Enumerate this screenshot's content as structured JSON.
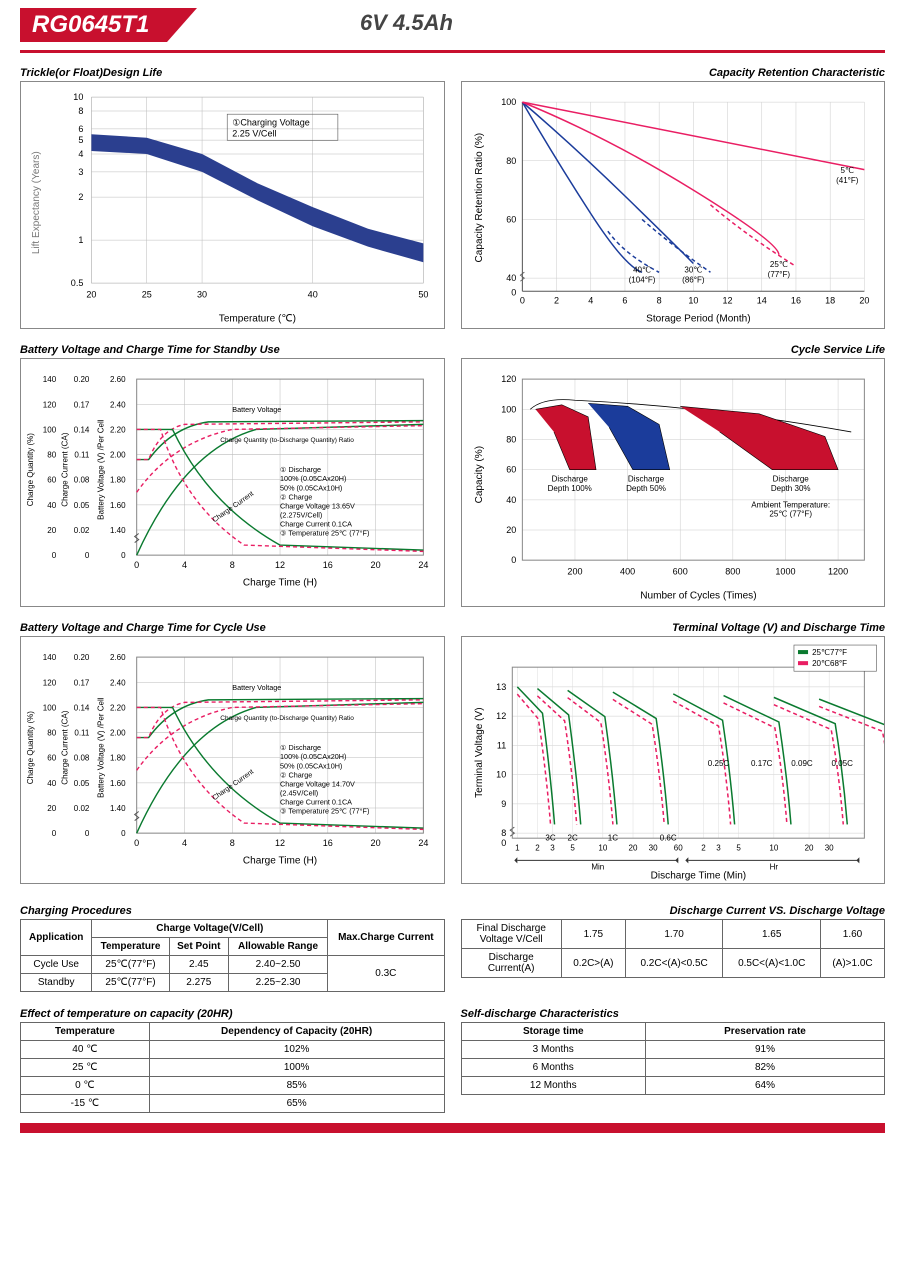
{
  "header": {
    "model": "RG0645T1",
    "spec": "6V  4.5Ah"
  },
  "chart1": {
    "title": "Trickle(or Float)Design Life",
    "ylabel": "Lift  Expectancy (Years)",
    "xlabel": "Temperature (℃)",
    "yticks": [
      "0.5",
      "1",
      "2",
      "3",
      "4",
      "5",
      "6",
      "8",
      "10"
    ],
    "xticks": [
      "20",
      "25",
      "30",
      "40",
      "50"
    ],
    "note1": "①Charging Voltage",
    "note2": "2.25 V/Cell",
    "band_color": "#2b3f8f"
  },
  "chart2": {
    "title": "Capacity  Retention  Characteristic",
    "ylabel": "Capacity Retention Ratio (%)",
    "xlabel": "Storage Period (Month)",
    "yticks": [
      "0",
      "40",
      "60",
      "80",
      "100"
    ],
    "xticks": [
      "0",
      "2",
      "4",
      "6",
      "8",
      "10",
      "12",
      "14",
      "16",
      "18",
      "20"
    ],
    "labels": [
      {
        "t1": "40℃",
        "t2": "(104°F)"
      },
      {
        "t1": "30℃",
        "t2": "(86°F)"
      },
      {
        "t1": "25℃",
        "t2": "(77°F)"
      },
      {
        "t1": "5℃",
        "t2": "(41°F)"
      }
    ],
    "colors": {
      "blue": "#1b3c9b",
      "magenta": "#e91e63"
    }
  },
  "chart3": {
    "title": "Battery Voltage and Charge Time for Standby Use",
    "y1": "Charge Quantity (%)",
    "y2": "Charge Current (CA)",
    "y3": "Battery Voltage (V) /Per Cell",
    "xlabel": "Charge Time (H)",
    "y1ticks": [
      "0",
      "20",
      "40",
      "60",
      "80",
      "100",
      "120",
      "140"
    ],
    "y2ticks": [
      "0",
      "0.02",
      "0.05",
      "0.08",
      "0.11",
      "0.14",
      "0.17",
      "0.20"
    ],
    "y3ticks": [
      "0",
      "1.40",
      "1.60",
      "1.80",
      "2.00",
      "2.20",
      "2.40",
      "2.60"
    ],
    "xticks": [
      "0",
      "4",
      "8",
      "12",
      "16",
      "20",
      "24"
    ],
    "legend": [
      "Battery Voltage",
      "Charge Quantity (to-Discharge Quantity) Ratio",
      "① Discharge",
      "100% (0.05CAx20H)",
      "50% (0.05CAx10H)",
      "② Charge",
      "Charge Voltage 13.65V",
      "(2.275V/Cell)",
      "Charge Current 0.1CA",
      "③ Temperature 25℃ (77°F)",
      "Charge Current"
    ],
    "green": "#0a7a2f",
    "magenta": "#e91e63"
  },
  "chart4": {
    "title": "Cycle Service Life",
    "ylabel": "Capacity (%)",
    "xlabel": "Number of Cycles (Times)",
    "yticks": [
      "0",
      "20",
      "40",
      "60",
      "80",
      "100",
      "120"
    ],
    "xticks": [
      "200",
      "400",
      "600",
      "800",
      "1000",
      "1200"
    ],
    "labels": [
      "Discharge\nDepth 100%",
      "Discharge\nDepth 50%",
      "Discharge\nDepth 30%"
    ],
    "note": "Ambient Temperature:\n25℃ (77°F)",
    "red": "#c8102e",
    "blue": "#1b3c9b"
  },
  "chart5": {
    "title": "Battery Voltage and Charge Time for Cycle Use",
    "legend": [
      "Battery Voltage",
      "Charge Quantity (to-Discharge Quantity) Ratio",
      "① Discharge",
      "100% (0.05CAx20H)",
      "50% (0.05CAx10H)",
      "② Charge",
      "Charge Voltage 14.70V",
      "(2.45V/Cell)",
      "Charge Current 0.1CA",
      "③ Temperature 25℃ (77°F)",
      "Charge Current"
    ]
  },
  "chart6": {
    "title": "Terminal Voltage (V) and Discharge Time",
    "ylabel": "Terminal Voltage (V)",
    "xlabel": "Discharge Time (Min)",
    "yticks": [
      "0",
      "8",
      "9",
      "10",
      "11",
      "12",
      "13"
    ],
    "xlabels_min": [
      "1",
      "2",
      "3",
      "5",
      "10",
      "20",
      "30",
      "60"
    ],
    "xlabels_hr": [
      "2",
      "3",
      "5",
      "10",
      "20",
      "30"
    ],
    "xsec1": "Min",
    "xsec2": "Hr",
    "clabels": [
      "3C",
      "2C",
      "1C",
      "0.6C",
      "0.25C",
      "0.17C",
      "0.09C",
      "0.05C"
    ],
    "leg1": "25℃77°F",
    "leg2": "20℃68°F",
    "green": "#0a7a2f",
    "magenta": "#e91e63"
  },
  "table1": {
    "title": "Charging Procedures",
    "h_app": "Application",
    "h_cv": "Charge Voltage(V/Cell)",
    "h_max": "Max.Charge Current",
    "h_temp": "Temperature",
    "h_set": "Set Point",
    "h_range": "Allowable Range",
    "rows": [
      {
        "app": "Cycle Use",
        "temp": "25℃(77°F)",
        "set": "2.45",
        "range": "2.40~2.50"
      },
      {
        "app": "Standby",
        "temp": "25℃(77°F)",
        "set": "2.275",
        "range": "2.25~2.30"
      }
    ],
    "max": "0.3C"
  },
  "table2": {
    "title": "Discharge Current VS. Discharge Voltage",
    "h1": "Final Discharge\nVoltage V/Cell",
    "h2": "Discharge\nCurrent(A)",
    "v": [
      "1.75",
      "1.70",
      "1.65",
      "1.60"
    ],
    "c": [
      "0.2C>(A)",
      "0.2C<(A)<0.5C",
      "0.5C<(A)<1.0C",
      "(A)>1.0C"
    ]
  },
  "table3": {
    "title": "Effect of temperature on capacity (20HR)",
    "h1": "Temperature",
    "h2": "Dependency of Capacity (20HR)",
    "rows": [
      [
        "40 ℃",
        "102%"
      ],
      [
        "25 ℃",
        "100%"
      ],
      [
        "0 ℃",
        "85%"
      ],
      [
        "-15 ℃",
        "65%"
      ]
    ]
  },
  "table4": {
    "title": "Self-discharge Characteristics",
    "h1": "Storage time",
    "h2": "Preservation rate",
    "rows": [
      [
        "3 Months",
        "91%"
      ],
      [
        "6 Months",
        "82%"
      ],
      [
        "12 Months",
        "64%"
      ]
    ]
  }
}
